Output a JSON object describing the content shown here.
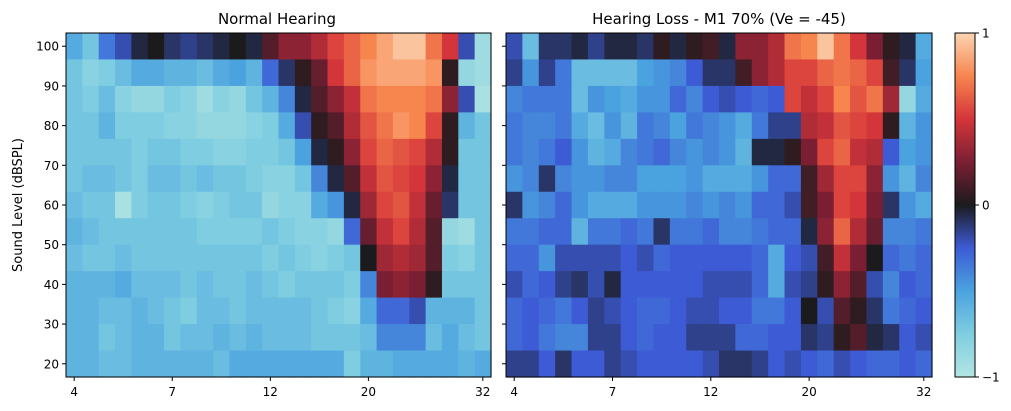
{
  "chart_data": [
    {
      "type": "heatmap",
      "title": "Normal Hearing",
      "xlabel": "",
      "ylabel": "Sound Level (dBSPL)",
      "x_tick_labels": [
        "4",
        "7",
        "12",
        "20",
        "32"
      ],
      "y_tick_labels": [
        "20",
        "30",
        "40",
        "50",
        "60",
        "70",
        "80",
        "90",
        "100"
      ],
      "vlim": [
        -1,
        1
      ],
      "rows_from_top": [
        [
          -0.55,
          -0.7,
          -0.35,
          -0.2,
          -0.05,
          0.0,
          -0.1,
          -0.15,
          -0.1,
          -0.05,
          0.0,
          -0.05,
          0.15,
          0.3,
          0.3,
          0.4,
          0.55,
          0.65,
          0.75,
          0.85,
          0.95,
          0.95,
          0.7,
          0.5,
          -0.2,
          -0.9
        ],
        [
          -0.7,
          -0.8,
          -0.75,
          -0.65,
          -0.55,
          -0.55,
          -0.6,
          -0.6,
          -0.65,
          -0.55,
          -0.5,
          -0.6,
          -0.3,
          -0.1,
          0.05,
          0.2,
          0.5,
          0.65,
          0.8,
          0.85,
          0.85,
          0.85,
          0.8,
          0.05,
          -0.85,
          -0.9
        ],
        [
          -0.7,
          -0.75,
          -0.65,
          -0.8,
          -0.85,
          -0.85,
          -0.75,
          -0.8,
          -0.9,
          -0.8,
          -0.85,
          -0.7,
          -0.6,
          -0.4,
          -0.05,
          0.15,
          0.3,
          0.45,
          0.7,
          0.75,
          0.75,
          0.75,
          0.7,
          0.3,
          -0.2,
          -0.95
        ],
        [
          -0.7,
          -0.7,
          -0.6,
          -0.75,
          -0.75,
          -0.75,
          -0.8,
          -0.8,
          -0.85,
          -0.85,
          -0.85,
          -0.8,
          -0.75,
          -0.55,
          -0.2,
          0.05,
          0.15,
          0.4,
          0.6,
          0.7,
          0.8,
          0.75,
          0.55,
          0.05,
          -0.6,
          -0.7
        ],
        [
          -0.7,
          -0.7,
          -0.7,
          -0.7,
          -0.75,
          -0.7,
          -0.7,
          -0.75,
          -0.75,
          -0.8,
          -0.8,
          -0.75,
          -0.75,
          -0.7,
          -0.5,
          -0.05,
          0.05,
          0.3,
          0.55,
          0.65,
          0.6,
          0.55,
          0.4,
          0.05,
          -0.7,
          -0.7
        ],
        [
          -0.7,
          -0.65,
          -0.65,
          -0.7,
          -0.75,
          -0.65,
          -0.65,
          -0.7,
          -0.65,
          -0.7,
          -0.7,
          -0.75,
          -0.8,
          -0.8,
          -0.7,
          -0.4,
          -0.05,
          0.15,
          0.45,
          0.6,
          0.55,
          0.5,
          0.3,
          -0.05,
          -0.7,
          -0.7
        ],
        [
          -0.65,
          -0.7,
          -0.7,
          -0.95,
          -0.75,
          -0.7,
          -0.7,
          -0.75,
          -0.8,
          -0.75,
          -0.7,
          -0.7,
          -0.85,
          -0.8,
          -0.8,
          -0.55,
          -0.45,
          -0.05,
          0.35,
          0.55,
          0.6,
          0.45,
          0.2,
          -0.1,
          -0.7,
          -0.7
        ],
        [
          -0.6,
          -0.65,
          -0.7,
          -0.7,
          -0.7,
          -0.7,
          -0.7,
          -0.7,
          -0.75,
          -0.75,
          -0.75,
          -0.75,
          -0.7,
          -0.75,
          -0.8,
          -0.8,
          -0.85,
          -0.3,
          0.2,
          0.45,
          0.55,
          0.4,
          0.15,
          -0.85,
          -0.9,
          -0.7
        ],
        [
          -0.65,
          -0.7,
          -0.7,
          -0.65,
          -0.7,
          -0.7,
          -0.7,
          -0.7,
          -0.7,
          -0.7,
          -0.7,
          -0.7,
          -0.75,
          -0.7,
          -0.75,
          -0.8,
          -0.75,
          -0.7,
          0.0,
          0.35,
          0.4,
          0.35,
          0.15,
          -0.75,
          -0.8,
          -0.7
        ],
        [
          -0.6,
          -0.6,
          -0.6,
          -0.55,
          -0.65,
          -0.65,
          -0.65,
          -0.7,
          -0.65,
          -0.7,
          -0.7,
          -0.65,
          -0.7,
          -0.75,
          -0.7,
          -0.7,
          -0.7,
          -0.75,
          -0.4,
          0.25,
          0.3,
          0.25,
          0.05,
          -0.7,
          -0.7,
          -0.7
        ],
        [
          -0.6,
          -0.6,
          -0.65,
          -0.65,
          -0.6,
          -0.65,
          -0.7,
          -0.75,
          -0.65,
          -0.65,
          -0.7,
          -0.65,
          -0.65,
          -0.65,
          -0.65,
          -0.7,
          -0.75,
          -0.8,
          -0.55,
          -0.3,
          -0.3,
          -0.2,
          -0.6,
          -0.6,
          -0.6,
          -0.7
        ],
        [
          -0.6,
          -0.6,
          -0.7,
          -0.65,
          -0.6,
          -0.6,
          -0.7,
          -0.65,
          -0.65,
          -0.6,
          -0.65,
          -0.6,
          -0.65,
          -0.65,
          -0.65,
          -0.7,
          -0.7,
          -0.7,
          -0.65,
          -0.4,
          -0.4,
          -0.4,
          -0.65,
          -0.55,
          -0.65,
          -0.7
        ],
        [
          -0.6,
          -0.6,
          -0.65,
          -0.65,
          -0.6,
          -0.6,
          -0.6,
          -0.6,
          -0.6,
          -0.65,
          -0.55,
          -0.55,
          -0.55,
          -0.55,
          -0.55,
          -0.55,
          -0.55,
          -0.75,
          -0.6,
          -0.6,
          -0.55,
          -0.55,
          -0.55,
          -0.55,
          -0.6,
          -0.55
        ]
      ]
    },
    {
      "type": "heatmap",
      "title": "Hearing Loss - M1 70% (Ve = -45)",
      "xlabel": "",
      "ylabel": "",
      "x_tick_labels": [
        "4",
        "7",
        "12",
        "20",
        "32"
      ],
      "y_tick_labels": [
        "20",
        "30",
        "40",
        "50",
        "60",
        "70",
        "80",
        "90",
        "100"
      ],
      "vlim": [
        -1,
        1
      ],
      "rows_from_top": [
        [
          -0.2,
          -0.65,
          -0.1,
          -0.1,
          -0.05,
          -0.15,
          -0.05,
          -0.05,
          -0.1,
          0.05,
          -0.05,
          0.05,
          0.1,
          -0.05,
          0.3,
          0.3,
          0.4,
          0.7,
          0.75,
          0.95,
          0.7,
          0.5,
          0.25,
          0.05,
          -0.05,
          -0.55
        ],
        [
          -0.15,
          -0.45,
          -0.15,
          -0.35,
          -0.65,
          -0.65,
          -0.65,
          -0.65,
          -0.5,
          -0.45,
          -0.4,
          -0.25,
          -0.1,
          -0.1,
          0.1,
          0.3,
          0.4,
          0.55,
          0.55,
          0.65,
          0.7,
          0.65,
          0.55,
          0.1,
          -0.1,
          -0.5
        ],
        [
          -0.4,
          -0.35,
          -0.35,
          -0.35,
          -0.65,
          -0.45,
          -0.5,
          -0.55,
          -0.45,
          -0.45,
          -0.3,
          -0.4,
          -0.25,
          -0.2,
          -0.25,
          -0.3,
          -0.25,
          0.55,
          0.45,
          0.55,
          0.75,
          0.6,
          0.7,
          0.35,
          -0.85,
          -0.55
        ],
        [
          -0.35,
          -0.4,
          -0.4,
          -0.35,
          -0.55,
          -0.65,
          -0.45,
          -0.6,
          -0.35,
          -0.4,
          -0.5,
          -0.35,
          -0.4,
          -0.45,
          -0.55,
          -0.35,
          -0.15,
          -0.15,
          0.4,
          0.45,
          0.6,
          0.55,
          0.5,
          0.05,
          -0.6,
          -0.45
        ],
        [
          -0.35,
          -0.4,
          -0.35,
          -0.25,
          -0.45,
          -0.6,
          -0.55,
          -0.4,
          -0.35,
          -0.3,
          -0.4,
          -0.45,
          -0.4,
          -0.45,
          -0.6,
          -0.05,
          -0.05,
          0.05,
          0.25,
          0.55,
          0.65,
          0.45,
          0.4,
          -0.25,
          -0.5,
          -0.45
        ],
        [
          -0.45,
          -0.4,
          -0.1,
          -0.4,
          -0.45,
          -0.45,
          -0.4,
          -0.4,
          -0.5,
          -0.5,
          -0.5,
          -0.45,
          -0.55,
          -0.55,
          -0.55,
          -0.45,
          -0.3,
          -0.3,
          0.1,
          0.35,
          0.55,
          0.55,
          0.3,
          -0.45,
          -0.6,
          -0.4
        ],
        [
          -0.1,
          -0.45,
          -0.4,
          -0.3,
          -0.45,
          -0.55,
          -0.55,
          -0.55,
          -0.45,
          -0.45,
          -0.45,
          -0.4,
          -0.45,
          -0.4,
          -0.45,
          -0.3,
          -0.3,
          -0.2,
          0.1,
          0.25,
          0.55,
          0.5,
          0.25,
          -0.1,
          -0.45,
          -0.55
        ],
        [
          -0.35,
          -0.35,
          -0.3,
          -0.3,
          -0.6,
          -0.35,
          -0.35,
          -0.3,
          -0.35,
          -0.1,
          -0.35,
          -0.35,
          -0.3,
          -0.4,
          -0.4,
          -0.35,
          -0.3,
          -0.3,
          -0.05,
          0.3,
          0.65,
          0.4,
          0.2,
          -0.4,
          -0.4,
          -0.35
        ],
        [
          -0.3,
          -0.3,
          -0.45,
          -0.2,
          -0.2,
          -0.2,
          -0.2,
          -0.25,
          -0.2,
          -0.3,
          -0.25,
          -0.25,
          -0.25,
          -0.25,
          -0.25,
          -0.3,
          -0.55,
          -0.25,
          -0.2,
          0.1,
          0.45,
          0.25,
          0.0,
          -0.3,
          -0.35,
          -0.3
        ],
        [
          -0.2,
          -0.3,
          -0.25,
          -0.15,
          -0.1,
          -0.2,
          -0.05,
          -0.25,
          -0.25,
          -0.25,
          -0.25,
          -0.25,
          -0.2,
          -0.2,
          -0.2,
          -0.3,
          -0.55,
          -0.2,
          -0.15,
          0.05,
          0.3,
          0.15,
          -0.2,
          -0.4,
          -0.25,
          -0.3
        ],
        [
          -0.3,
          -0.25,
          -0.3,
          -0.35,
          -0.25,
          -0.15,
          -0.2,
          -0.25,
          -0.3,
          -0.3,
          -0.25,
          -0.2,
          -0.2,
          -0.25,
          -0.25,
          -0.35,
          -0.35,
          -0.25,
          0.0,
          -0.2,
          0.15,
          0.05,
          -0.1,
          -0.35,
          -0.3,
          -0.25
        ],
        [
          -0.3,
          -0.25,
          -0.35,
          -0.4,
          -0.4,
          -0.15,
          -0.15,
          -0.25,
          -0.3,
          -0.25,
          -0.25,
          -0.15,
          -0.15,
          -0.15,
          -0.3,
          -0.3,
          -0.25,
          -0.25,
          -0.1,
          -0.15,
          0.05,
          0.15,
          -0.05,
          -0.1,
          -0.25,
          -0.2
        ],
        [
          -0.15,
          -0.15,
          -0.25,
          -0.1,
          -0.25,
          -0.25,
          -0.15,
          -0.2,
          -0.25,
          -0.25,
          -0.25,
          -0.25,
          -0.2,
          -0.1,
          -0.1,
          -0.15,
          -0.25,
          -0.2,
          -0.25,
          -0.3,
          -0.2,
          -0.25,
          -0.3,
          -0.3,
          -0.25,
          -0.3
        ]
      ]
    }
  ],
  "colorbar": {
    "tick_labels": [
      "1",
      "0",
      "−1"
    ],
    "tick_values": [
      1,
      0,
      -1
    ]
  }
}
